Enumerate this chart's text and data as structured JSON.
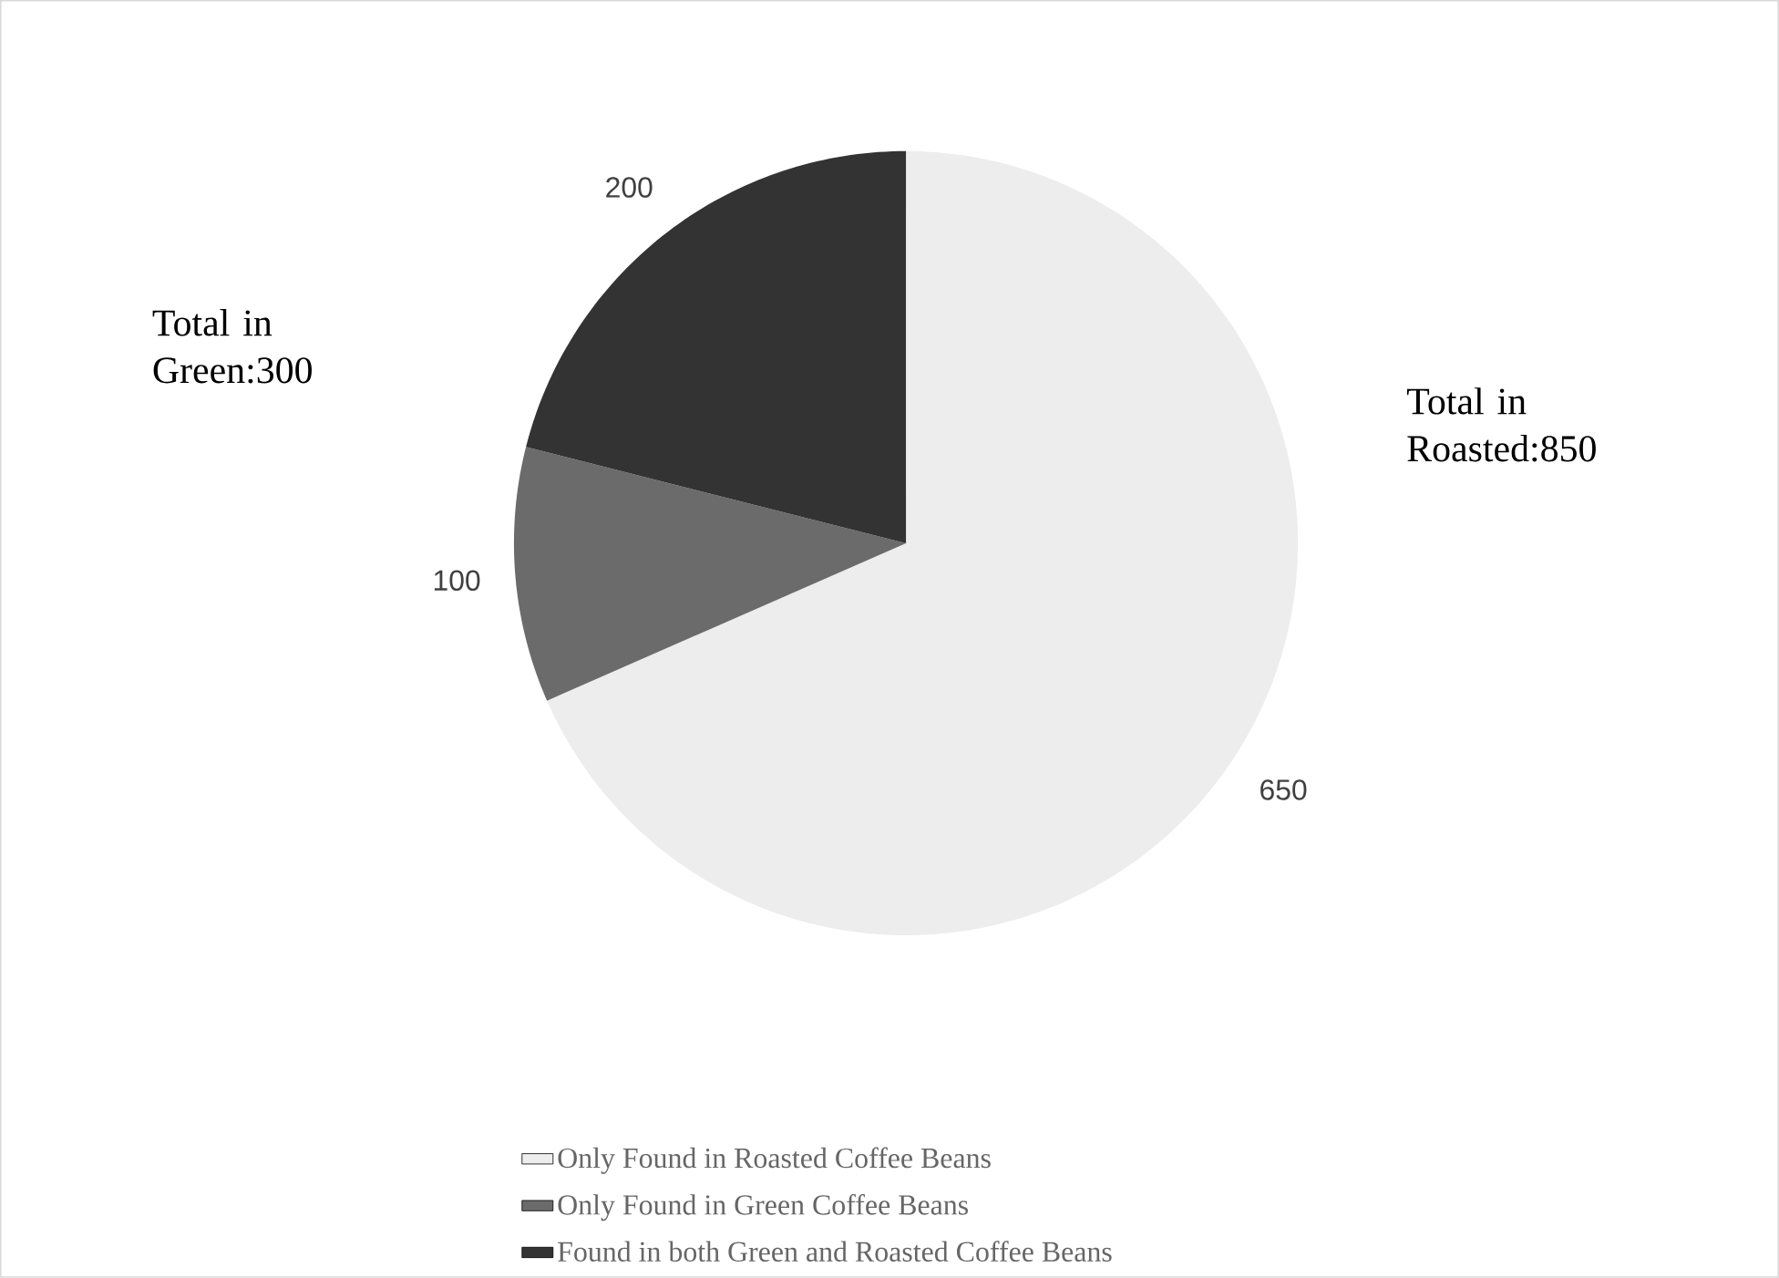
{
  "chart_data": {
    "type": "pie",
    "categories": [
      "Only Found in Roasted Coffee Beans",
      "Only Found in Green Coffee Beans",
      "Found in both Green and Roasted Coffee Beans"
    ],
    "values": [
      650,
      100,
      200
    ],
    "colors": [
      "#ededed",
      "#6b6b6b",
      "#333333"
    ],
    "data_labels": true,
    "legend": "bottom",
    "annotations": [
      "Total in Green:300",
      "Total in Roasted:850"
    ]
  }
}
